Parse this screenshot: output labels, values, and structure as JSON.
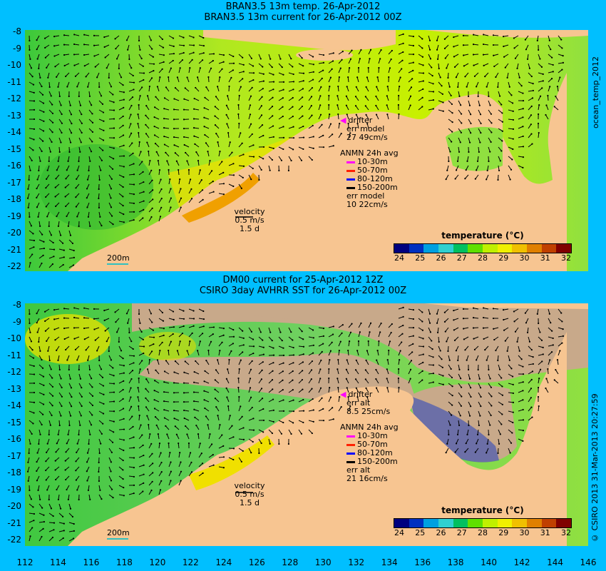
{
  "top_panel": {
    "title_line1": "BRAN3.5 13m temp. 26-Apr-2012",
    "title_line2": "BRAN3.5 13m current for 26-Apr-2012 00Z",
    "side_label": "ocean_temp_2012",
    "legend": {
      "drifter": "drifter",
      "err_label": "err model",
      "err_value": "27 49cm/s",
      "anmn": "ANMN 24h avg",
      "depths": [
        "10-30m",
        "50-70m",
        "80-120m",
        "150-200m"
      ],
      "err2_label": "err model",
      "err2_value": "10 22cm/s"
    },
    "velocity": {
      "label": "velocity",
      "speed": "0.5 m/s",
      "days": "1.5 d"
    },
    "isobath": "200m",
    "colorbar": {
      "title": "temperature (°C)",
      "ticks": [
        "24",
        "25",
        "26",
        "27",
        "28",
        "29",
        "30",
        "31",
        "32"
      ]
    }
  },
  "bottom_panel": {
    "title_line1": "DM00 current for 25-Apr-2012 12Z",
    "title_line2": "CSIRO 3day AVHRR SST for 26-Apr-2012 00Z",
    "side_label": "© CSIRO 2013  31-Mar-2013 20:27:59",
    "legend": {
      "drifter": "drifter",
      "err_label": "err alt",
      "err_value": "8.5 25cm/s",
      "anmn": "ANMN 24h avg",
      "depths": [
        "10-30m",
        "50-70m",
        "80-120m",
        "150-200m"
      ],
      "err2_label": "err alt",
      "err2_value": "21 16cm/s"
    },
    "velocity": {
      "label": "velocity",
      "speed": "0.5 m/s",
      "days": "1.5 d"
    },
    "isobath": "200m",
    "colorbar": {
      "title": "temperature (°C)",
      "ticks": [
        "24",
        "25",
        "26",
        "27",
        "28",
        "29",
        "30",
        "31",
        "32"
      ]
    }
  },
  "y_ticks": [
    "-8",
    "-9",
    "-10",
    "-11",
    "-12",
    "-13",
    "-14",
    "-15",
    "-16",
    "-17",
    "-18",
    "-19",
    "-20",
    "-21",
    "-22"
  ],
  "x_ticks": [
    "112",
    "114",
    "116",
    "118",
    "120",
    "122",
    "124",
    "126",
    "128",
    "130",
    "132",
    "134",
    "136",
    "138",
    "140",
    "142",
    "144",
    "146"
  ],
  "colors": {
    "background": "#00BFFF",
    "land": "#F7C591",
    "cloud": "#C8A98A",
    "depth_colors": [
      "#FF00FF",
      "#FF2000",
      "#0000FF",
      "#000000"
    ],
    "colorbar": [
      "#00007F",
      "#0030C0",
      "#00A0E0",
      "#30D0D0",
      "#00C060",
      "#60E000",
      "#C0F000",
      "#F0F000",
      "#F0C000",
      "#E08000",
      "#C04000",
      "#800000"
    ]
  }
}
